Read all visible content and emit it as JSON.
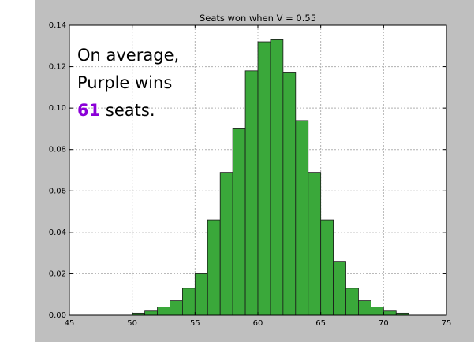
{
  "chart_data": {
    "type": "bar",
    "title": "Seats won when V = 0.55",
    "xlabel": "",
    "ylabel": "",
    "xlim": [
      45,
      75
    ],
    "ylim": [
      0,
      0.14
    ],
    "xticks": [
      45,
      50,
      55,
      60,
      65,
      70,
      75
    ],
    "yticks": [
      0.0,
      0.02,
      0.04,
      0.06,
      0.08,
      0.1,
      0.12,
      0.14
    ],
    "ytick_labels": [
      "0.00",
      "0.02",
      "0.04",
      "0.06",
      "0.08",
      "0.10",
      "0.12",
      "0.14"
    ],
    "grid": true,
    "bins": [
      {
        "x0": 50,
        "x1": 51,
        "value": 0.001
      },
      {
        "x0": 51,
        "x1": 52,
        "value": 0.002
      },
      {
        "x0": 52,
        "x1": 53,
        "value": 0.004
      },
      {
        "x0": 53,
        "x1": 54,
        "value": 0.007
      },
      {
        "x0": 54,
        "x1": 55,
        "value": 0.013
      },
      {
        "x0": 55,
        "x1": 56,
        "value": 0.02
      },
      {
        "x0": 56,
        "x1": 57,
        "value": 0.046
      },
      {
        "x0": 57,
        "x1": 58,
        "value": 0.069
      },
      {
        "x0": 58,
        "x1": 59,
        "value": 0.09
      },
      {
        "x0": 59,
        "x1": 60,
        "value": 0.118
      },
      {
        "x0": 60,
        "x1": 61,
        "value": 0.132
      },
      {
        "x0": 61,
        "x1": 62,
        "value": 0.133
      },
      {
        "x0": 62,
        "x1": 63,
        "value": 0.117
      },
      {
        "x0": 63,
        "x1": 64,
        "value": 0.094
      },
      {
        "x0": 64,
        "x1": 65,
        "value": 0.069
      },
      {
        "x0": 65,
        "x1": 66,
        "value": 0.046
      },
      {
        "x0": 66,
        "x1": 67,
        "value": 0.026
      },
      {
        "x0": 67,
        "x1": 68,
        "value": 0.013
      },
      {
        "x0": 68,
        "x1": 69,
        "value": 0.007
      },
      {
        "x0": 69,
        "x1": 70,
        "value": 0.004
      },
      {
        "x0": 70,
        "x1": 71,
        "value": 0.002
      },
      {
        "x0": 71,
        "x1": 72,
        "value": 0.001
      }
    ],
    "bar_color": "#3aa83a",
    "annotation": {
      "line1": "On average,",
      "line2": "Purple wins",
      "line3_value": "61",
      "line3_rest": " seats.",
      "highlight_color": "#8b00d8"
    }
  }
}
